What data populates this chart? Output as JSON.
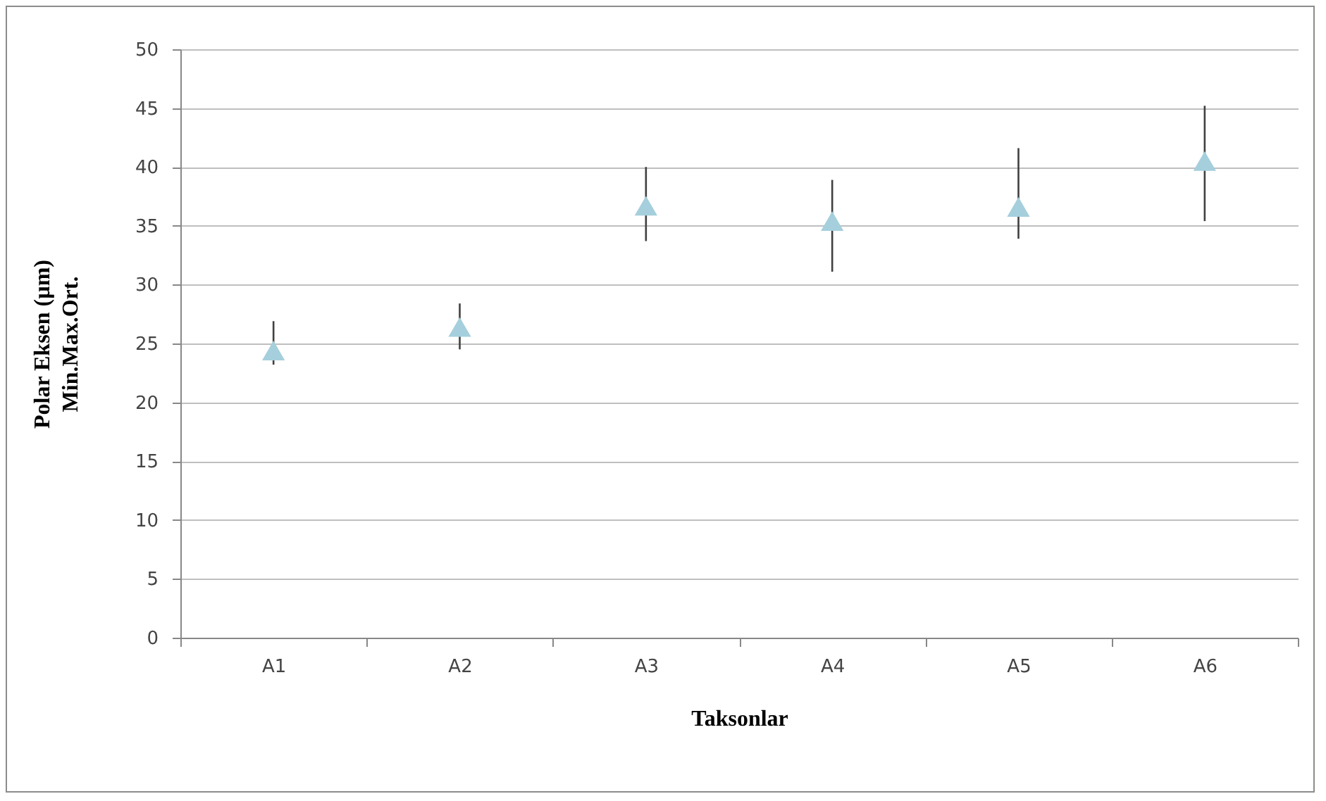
{
  "chart_data": {
    "type": "scatter",
    "xlabel": "Taksonlar",
    "ylabel": "Polar Eksen (µm)\nMin.Max.Ort.",
    "categories": [
      "A1",
      "A2",
      "A3",
      "A4",
      "A5",
      "A6"
    ],
    "series": [
      {
        "color": "#a5cfdc",
        "values": [
          24.4,
          26.4,
          36.7,
          35.4,
          36.6,
          40.5
        ],
        "errors": [
          [
            23.2,
            26.9
          ],
          [
            24.5,
            28.4
          ],
          [
            33.7,
            40.0
          ],
          [
            31.1,
            38.9
          ],
          [
            33.9,
            41.6
          ],
          [
            35.4,
            45.2
          ]
        ]
      }
    ],
    "ylim": [
      0,
      50
    ],
    "yticks": [
      0,
      5,
      10,
      15,
      20,
      25,
      30,
      35,
      40,
      45,
      50
    ],
    "grid": "y",
    "marker": "triangle",
    "legend": false
  }
}
